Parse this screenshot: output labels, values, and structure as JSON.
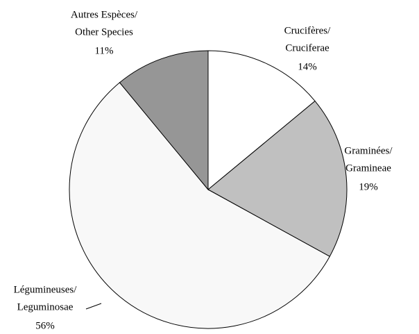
{
  "chart_data": {
    "type": "pie",
    "categories": [
      [
        "Crucifères/",
        "Cruciferae"
      ],
      [
        "Graminées/",
        "Gramineae"
      ],
      [
        "Légumineuses/",
        "Leguminosae"
      ],
      [
        "Autres Espèces/",
        "Other Species"
      ]
    ],
    "values": [
      14,
      19,
      56,
      11
    ],
    "value_labels": [
      "14%",
      "19%",
      "56%",
      "11%"
    ],
    "colors": [
      "#ffffff",
      "#c0c0c0",
      "#f8f8f8",
      "#969696"
    ]
  }
}
